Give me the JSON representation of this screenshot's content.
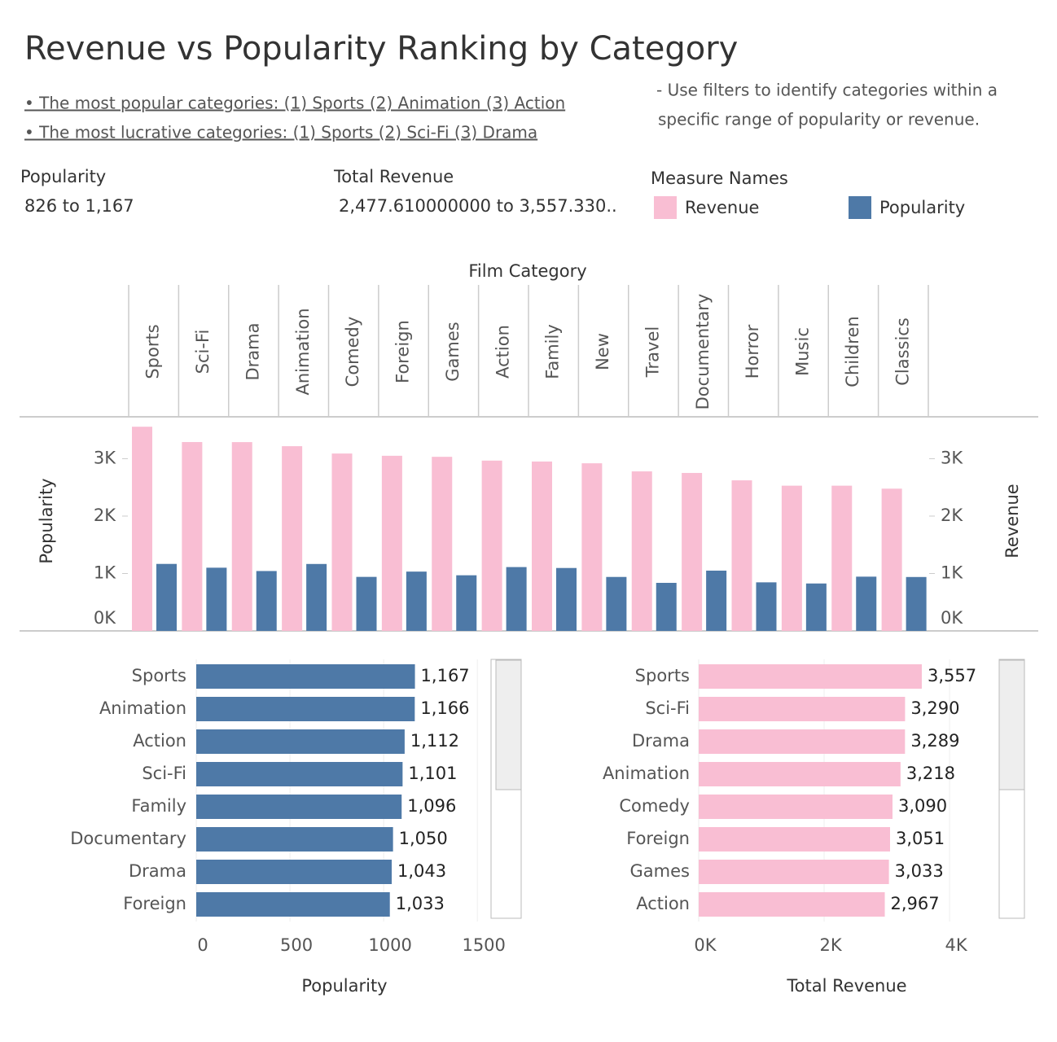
{
  "header": {
    "title": "Revenue vs Popularity Ranking by Category",
    "bullets": [
      "• The most popular categories: (1) Sports (2) Animation (3) Action",
      "• The most lucrative categories: (1) Sports (2) Sci-Fi (3) Drama"
    ],
    "note": [
      "- Use  filters to identify categories within a",
      "specific range of popularity or revenue."
    ]
  },
  "filters": [
    {
      "title": "Popularity",
      "range": "826 to 1,167"
    },
    {
      "title": "Total Revenue",
      "range": "2,477.610000000 to 3,557.330.."
    }
  ],
  "chart_data": [
    {
      "type": "bar",
      "orientation": "vertical",
      "x_label": "Film Category",
      "y_label": "Popularity",
      "y2_label": "Revenue",
      "legend_title": "Measure Names",
      "categories": [
        "Sports",
        "Sci-Fi",
        "Drama",
        "Animation",
        "Comedy",
        "Foreign",
        "Games",
        "Action",
        "Family",
        "New",
        "Travel",
        "Documentary",
        "Horror",
        "Music",
        "Children",
        "Classics"
      ],
      "series": [
        {
          "name": "Revenue",
          "color": "#f9bed3",
          "axis": "y2",
          "values": [
            3557,
            3290,
            3289,
            3218,
            3090,
            3051,
            3033,
            2967,
            2951,
            2920,
            2779,
            2752,
            2623,
            2530,
            2530,
            2478
          ]
        },
        {
          "name": "Popularity",
          "color": "#4e79a7",
          "values": [
            1167,
            1101,
            1043,
            1166,
            941,
            1033,
            969,
            1112,
            1096,
            940,
            837,
            1050,
            846,
            826,
            945,
            939
          ]
        }
      ],
      "ylim": [
        0,
        3730
      ],
      "yticks": [
        {
          "value": 0,
          "label": "0K"
        },
        {
          "value": 1000,
          "label": "1K"
        },
        {
          "value": 2000,
          "label": "2K"
        },
        {
          "value": 3000,
          "label": "3K"
        }
      ],
      "y2lim": [
        0,
        3730
      ],
      "y2ticks": [
        {
          "value": 0,
          "label": "0K"
        },
        {
          "value": 1000,
          "label": "1K"
        },
        {
          "value": 2000,
          "label": "2K"
        },
        {
          "value": 3000,
          "label": "3K"
        }
      ]
    },
    {
      "type": "bar",
      "orientation": "horizontal",
      "x_label": "Popularity",
      "color": "#4e79a7",
      "categories": [
        "Sports",
        "Animation",
        "Action",
        "Sci-Fi",
        "Family",
        "Documentary",
        "Drama",
        "Foreign"
      ],
      "values": [
        1167,
        1166,
        1112,
        1101,
        1096,
        1050,
        1043,
        1033
      ],
      "value_labels": [
        "1,167",
        "1,166",
        "1,112",
        "1,101",
        "1,096",
        "1,050",
        "1,043",
        "1,033"
      ],
      "xlim": [
        0,
        1560
      ],
      "xticks": [
        0,
        500,
        1000,
        1500
      ]
    },
    {
      "type": "bar",
      "orientation": "horizontal",
      "x_label": "Total Revenue",
      "color": "#f9bed3",
      "categories": [
        "Sports",
        "Sci-Fi",
        "Drama",
        "Animation",
        "Comedy",
        "Foreign",
        "Games",
        "Action"
      ],
      "values": [
        3557,
        3290,
        3289,
        3218,
        3090,
        3051,
        3033,
        2967
      ],
      "value_labels": [
        "3,557",
        "3,290",
        "3,289",
        "3,218",
        "3,090",
        "3,051",
        "3,033",
        "2,967"
      ],
      "xlim": [
        0,
        4700
      ],
      "xticks": [
        {
          "value": 0,
          "label": "0K"
        },
        {
          "value": 2000,
          "label": "2K"
        },
        {
          "value": 4000,
          "label": "4K"
        }
      ]
    }
  ]
}
